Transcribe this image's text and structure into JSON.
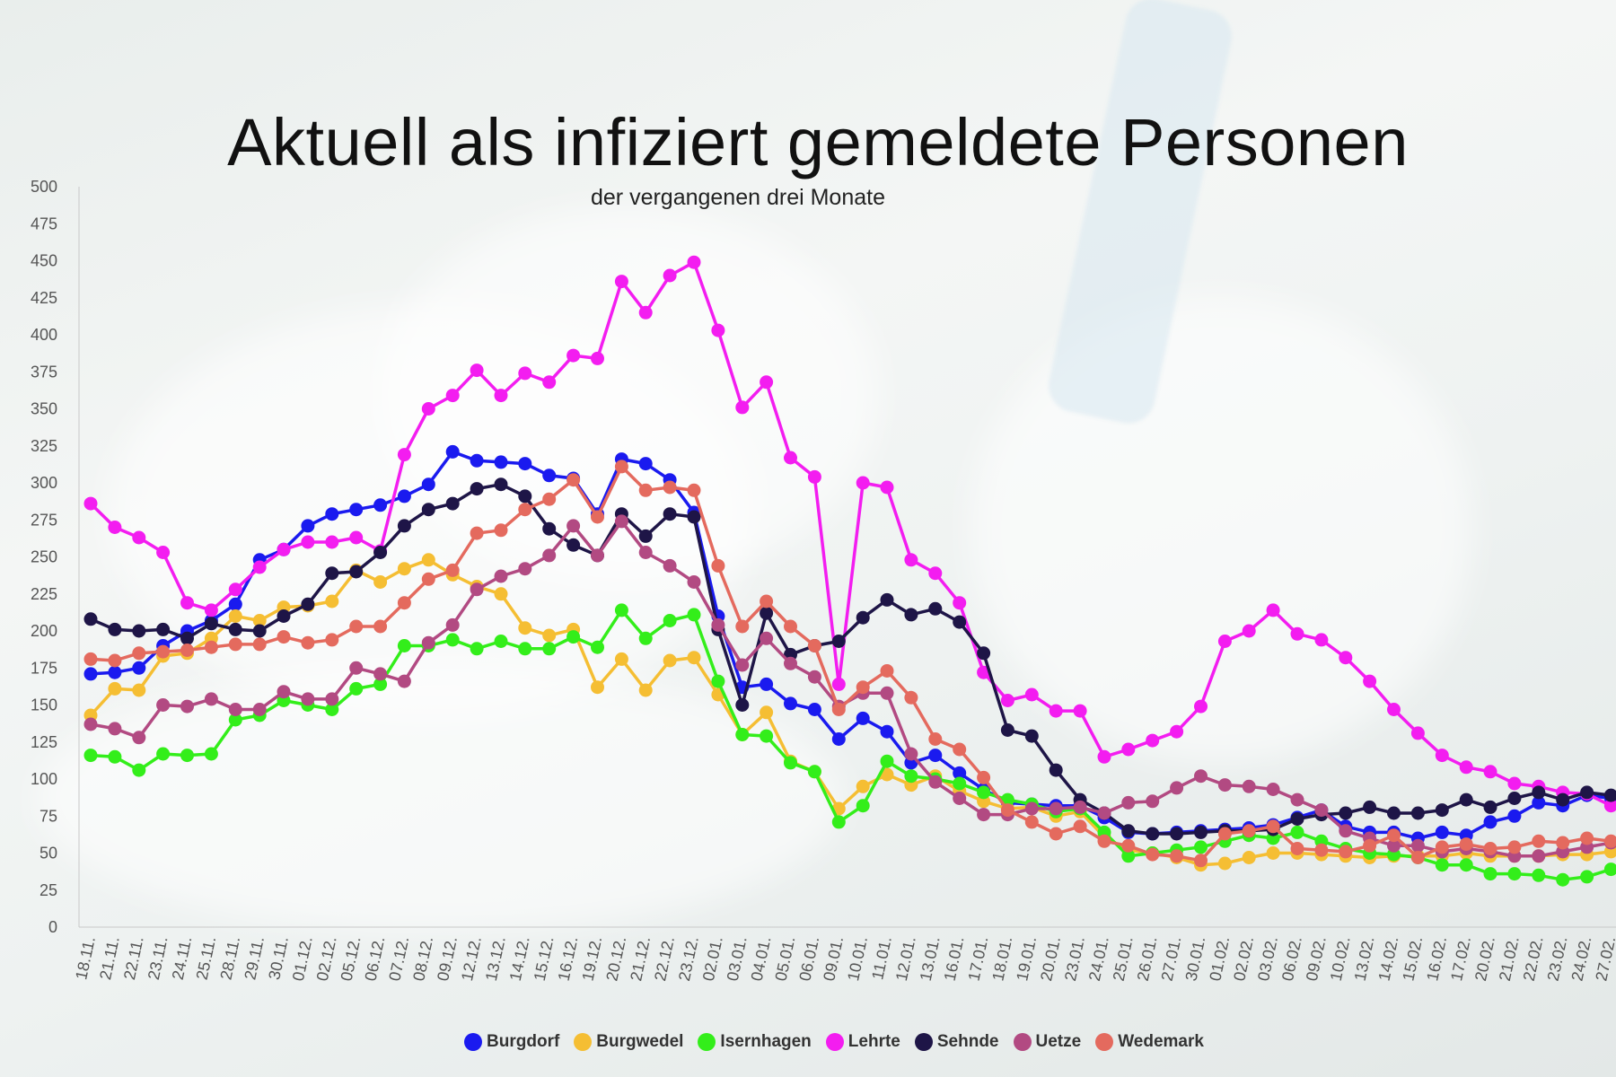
{
  "chart_data": {
    "type": "line",
    "title": "Aktuell als infiziert gemeldete Personen",
    "subtitle": "der vergangenen drei Monate",
    "ylim": [
      0,
      500
    ],
    "yticks": [
      0,
      25,
      50,
      75,
      100,
      125,
      150,
      175,
      200,
      225,
      250,
      275,
      300,
      325,
      350,
      375,
      400,
      425,
      450,
      475,
      500
    ],
    "grid": false,
    "legend_position": "bottom",
    "categories": [
      "18.11.",
      "21.11.",
      "22.11.",
      "23.11.",
      "24.11.",
      "25.11.",
      "28.11.",
      "29.11.",
      "30.11.",
      "01.12.",
      "02.12.",
      "05.12.",
      "06.12.",
      "07.12.",
      "08.12.",
      "09.12.",
      "12.12.",
      "13.12.",
      "14.12.",
      "15.12.",
      "16.12.",
      "19.12.",
      "20.12.",
      "21.12.",
      "22.12.",
      "23.12.",
      "02.01.",
      "03.01.",
      "04.01.",
      "05.01.",
      "06.01.",
      "09.01.",
      "10.01.",
      "11.01.",
      "12.01.",
      "13.01.",
      "16.01.",
      "17.01.",
      "18.01.",
      "19.01.",
      "20.01.",
      "23.01.",
      "24.01.",
      "25.01.",
      "26.01.",
      "27.01.",
      "30.01.",
      "01.02.",
      "02.02.",
      "03.02.",
      "06.02.",
      "09.02.",
      "10.02.",
      "13.02.",
      "14.02.",
      "15.02.",
      "16.02.",
      "17.02.",
      "20.02.",
      "21.02.",
      "22.02.",
      "23.02.",
      "24.02.",
      "27.02."
    ],
    "series": [
      {
        "name": "Burgdorf",
        "color": "#1a1aef",
        "values": [
          171,
          172,
          175,
          190,
          200,
          207,
          218,
          248,
          255,
          271,
          279,
          282,
          285,
          291,
          299,
          321,
          315,
          314,
          313,
          305,
          303,
          279,
          316,
          313,
          302,
          280,
          210,
          162,
          164,
          151,
          147,
          127,
          141,
          132,
          111,
          116,
          104,
          93,
          84,
          83,
          82,
          82,
          74,
          64,
          63,
          64,
          65,
          66,
          67,
          69,
          74,
          79,
          68,
          64,
          64,
          60,
          64,
          62,
          71,
          75,
          84,
          82,
          89,
          87
        ]
      },
      {
        "name": "Burgwedel",
        "color": "#f5be33",
        "values": [
          143,
          161,
          160,
          183,
          185,
          195,
          210,
          207,
          216,
          217,
          220,
          241,
          233,
          242,
          248,
          238,
          230,
          225,
          202,
          197,
          201,
          162,
          181,
          160,
          180,
          182,
          157,
          130,
          145,
          112,
          105,
          80,
          95,
          103,
          96,
          102,
          92,
          85,
          80,
          81,
          75,
          78,
          61,
          52,
          50,
          47,
          42,
          43,
          47,
          50,
          50,
          49,
          48,
          47,
          48,
          48,
          48,
          50,
          48,
          48,
          48,
          49,
          49,
          51
        ]
      },
      {
        "name": "Isernhagen",
        "color": "#33ee1a",
        "values": [
          116,
          115,
          106,
          117,
          116,
          117,
          140,
          143,
          153,
          150,
          147,
          161,
          164,
          190,
          190,
          194,
          188,
          193,
          188,
          188,
          196,
          189,
          214,
          195,
          207,
          211,
          166,
          130,
          129,
          111,
          105,
          71,
          82,
          112,
          102,
          100,
          97,
          91,
          86,
          83,
          78,
          80,
          64,
          48,
          50,
          52,
          54,
          58,
          62,
          60,
          64,
          58,
          53,
          50,
          49,
          47,
          42,
          42,
          36,
          36,
          35,
          32,
          34,
          39
        ]
      },
      {
        "name": "Lehrte",
        "color": "#f31df0",
        "values": [
          286,
          270,
          263,
          253,
          219,
          214,
          228,
          243,
          255,
          260,
          260,
          263,
          254,
          319,
          350,
          359,
          376,
          359,
          374,
          368,
          386,
          384,
          436,
          415,
          440,
          449,
          403,
          351,
          368,
          317,
          304,
          164,
          300,
          297,
          248,
          239,
          219,
          172,
          153,
          157,
          146,
          146,
          115,
          120,
          126,
          132,
          149,
          193,
          200,
          214,
          198,
          194,
          182,
          166,
          147,
          131,
          116,
          108,
          105,
          97,
          95,
          91,
          90,
          82
        ]
      },
      {
        "name": "Sehnde",
        "color": "#1e1547",
        "values": [
          208,
          201,
          200,
          201,
          195,
          205,
          201,
          200,
          210,
          218,
          239,
          240,
          253,
          271,
          282,
          286,
          296,
          299,
          291,
          269,
          258,
          251,
          279,
          264,
          279,
          277,
          201,
          150,
          212,
          184,
          190,
          193,
          209,
          221,
          211,
          215,
          206,
          185,
          133,
          129,
          106,
          86,
          77,
          65,
          63,
          63,
          64,
          65,
          65,
          66,
          73,
          76,
          77,
          81,
          77,
          77,
          79,
          86,
          81,
          87,
          91,
          86,
          91,
          89
        ]
      },
      {
        "name": "Uetze",
        "color": "#b24a82",
        "values": [
          137,
          134,
          128,
          150,
          149,
          154,
          147,
          147,
          159,
          154,
          154,
          175,
          171,
          166,
          192,
          204,
          228,
          237,
          242,
          251,
          271,
          251,
          274,
          253,
          244,
          233,
          204,
          177,
          195,
          178,
          169,
          149,
          158,
          158,
          117,
          98,
          87,
          76,
          76,
          80,
          80,
          81,
          77,
          84,
          85,
          94,
          102,
          96,
          95,
          93,
          86,
          79,
          65,
          60,
          55,
          55,
          51,
          53,
          51,
          48,
          48,
          51,
          54,
          57
        ]
      },
      {
        "name": "Wedemark",
        "color": "#e46a5e",
        "values": [
          181,
          180,
          185,
          186,
          187,
          189,
          191,
          191,
          196,
          192,
          194,
          203,
          203,
          219,
          235,
          241,
          266,
          268,
          282,
          289,
          302,
          277,
          311,
          295,
          297,
          295,
          244,
          203,
          220,
          203,
          190,
          147,
          162,
          173,
          155,
          127,
          120,
          101,
          79,
          71,
          63,
          68,
          58,
          55,
          49,
          48,
          45,
          63,
          65,
          68,
          53,
          52,
          51,
          55,
          62,
          47,
          54,
          56,
          53,
          54,
          58,
          57,
          60,
          58
        ]
      }
    ]
  }
}
